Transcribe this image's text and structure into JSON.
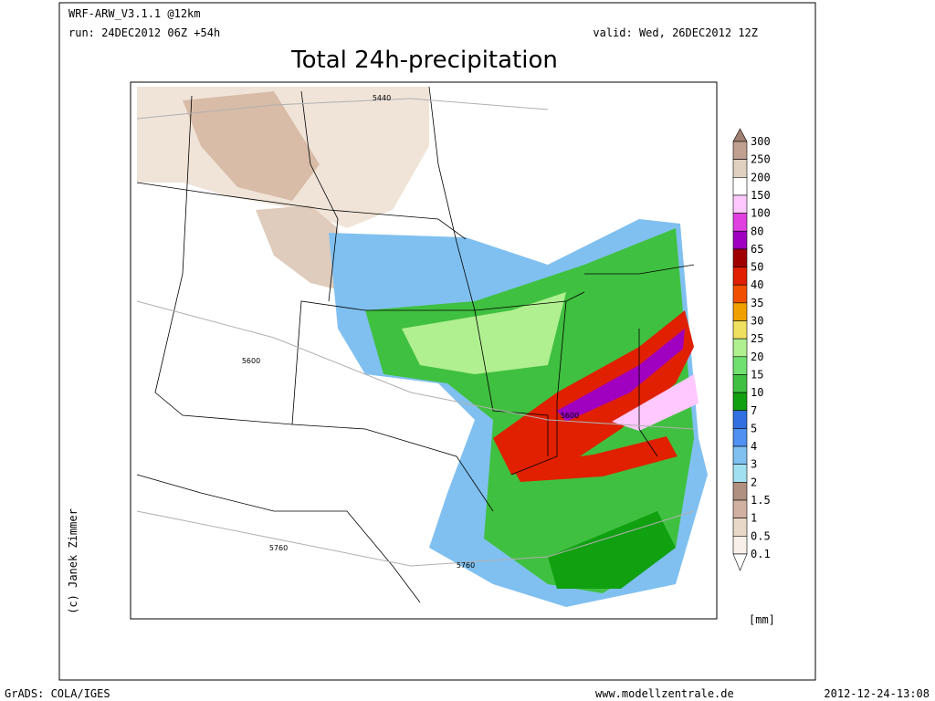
{
  "header": {
    "model": "WRF-ARW_V3.1.1 @12km",
    "run": "run: 24DEC2012 06Z +54h",
    "valid": "valid: Wed, 26DEC2012 12Z",
    "title": "Total 24h-precipitation"
  },
  "colorbar": {
    "unit": "[mm]",
    "levels": [
      "300",
      "250",
      "200",
      "150",
      "100",
      "80",
      "65",
      "50",
      "40",
      "35",
      "30",
      "25",
      "20",
      "15",
      "10",
      "7",
      "5",
      "4",
      "3",
      "2",
      "1.5",
      "1",
      "0.5",
      "0.1"
    ],
    "colors": [
      "#a08070",
      "#c0a090",
      "#e0d0c0",
      "#ffffff",
      "#ffc8ff",
      "#e040e0",
      "#a000c0",
      "#a00000",
      "#e02000",
      "#f05000",
      "#f0a000",
      "#f0e060",
      "#b0f090",
      "#70e070",
      "#40c040",
      "#10a010",
      "#3070e0",
      "#5090f0",
      "#80c0f0",
      "#a0e0f0",
      "#b09080",
      "#d0b0a0",
      "#e8d8c8",
      "#f8f0e8",
      "#ffffff"
    ]
  },
  "contour_labels": [
    "5440",
    "5600",
    "5600",
    "5760",
    "5760"
  ],
  "credit": "(c) Janek Zimmer",
  "footer": {
    "left": "GrADS: COLA/IGES",
    "center": "www.modellzentrale.de",
    "right": "2012-12-24-13:08"
  }
}
